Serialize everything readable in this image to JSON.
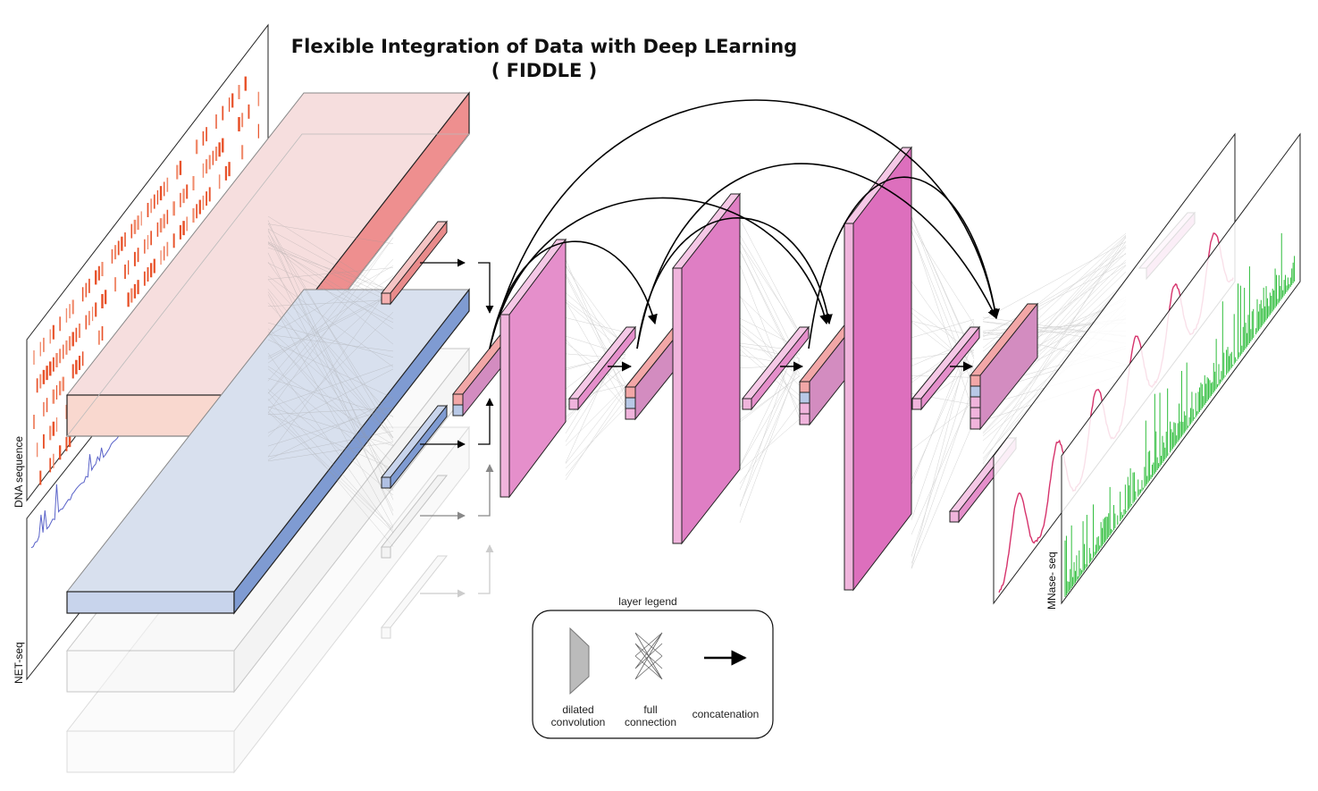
{
  "title": {
    "line1": "Flexible Integration of Data with Deep LEarning",
    "line2": "( FIDDLE )"
  },
  "inputs": {
    "dna_label": "DNA sequence",
    "net_label": "NET-seq"
  },
  "output": {
    "mnase_label": "MNase- seq"
  },
  "legend": {
    "title": "layer legend",
    "dilated": "dilated\nconvolution",
    "full": "full\nconnection",
    "concat": "concatenation"
  },
  "colors": {
    "dna_track": "#e8532b",
    "net_track": "#4a6fd1",
    "red_block": "#f2a7a7",
    "blue_block": "#b8c8e6",
    "magenta_layer": "#e26fc1",
    "mnase_profile": "#d6336c",
    "green_track": "#2ebd3b"
  }
}
